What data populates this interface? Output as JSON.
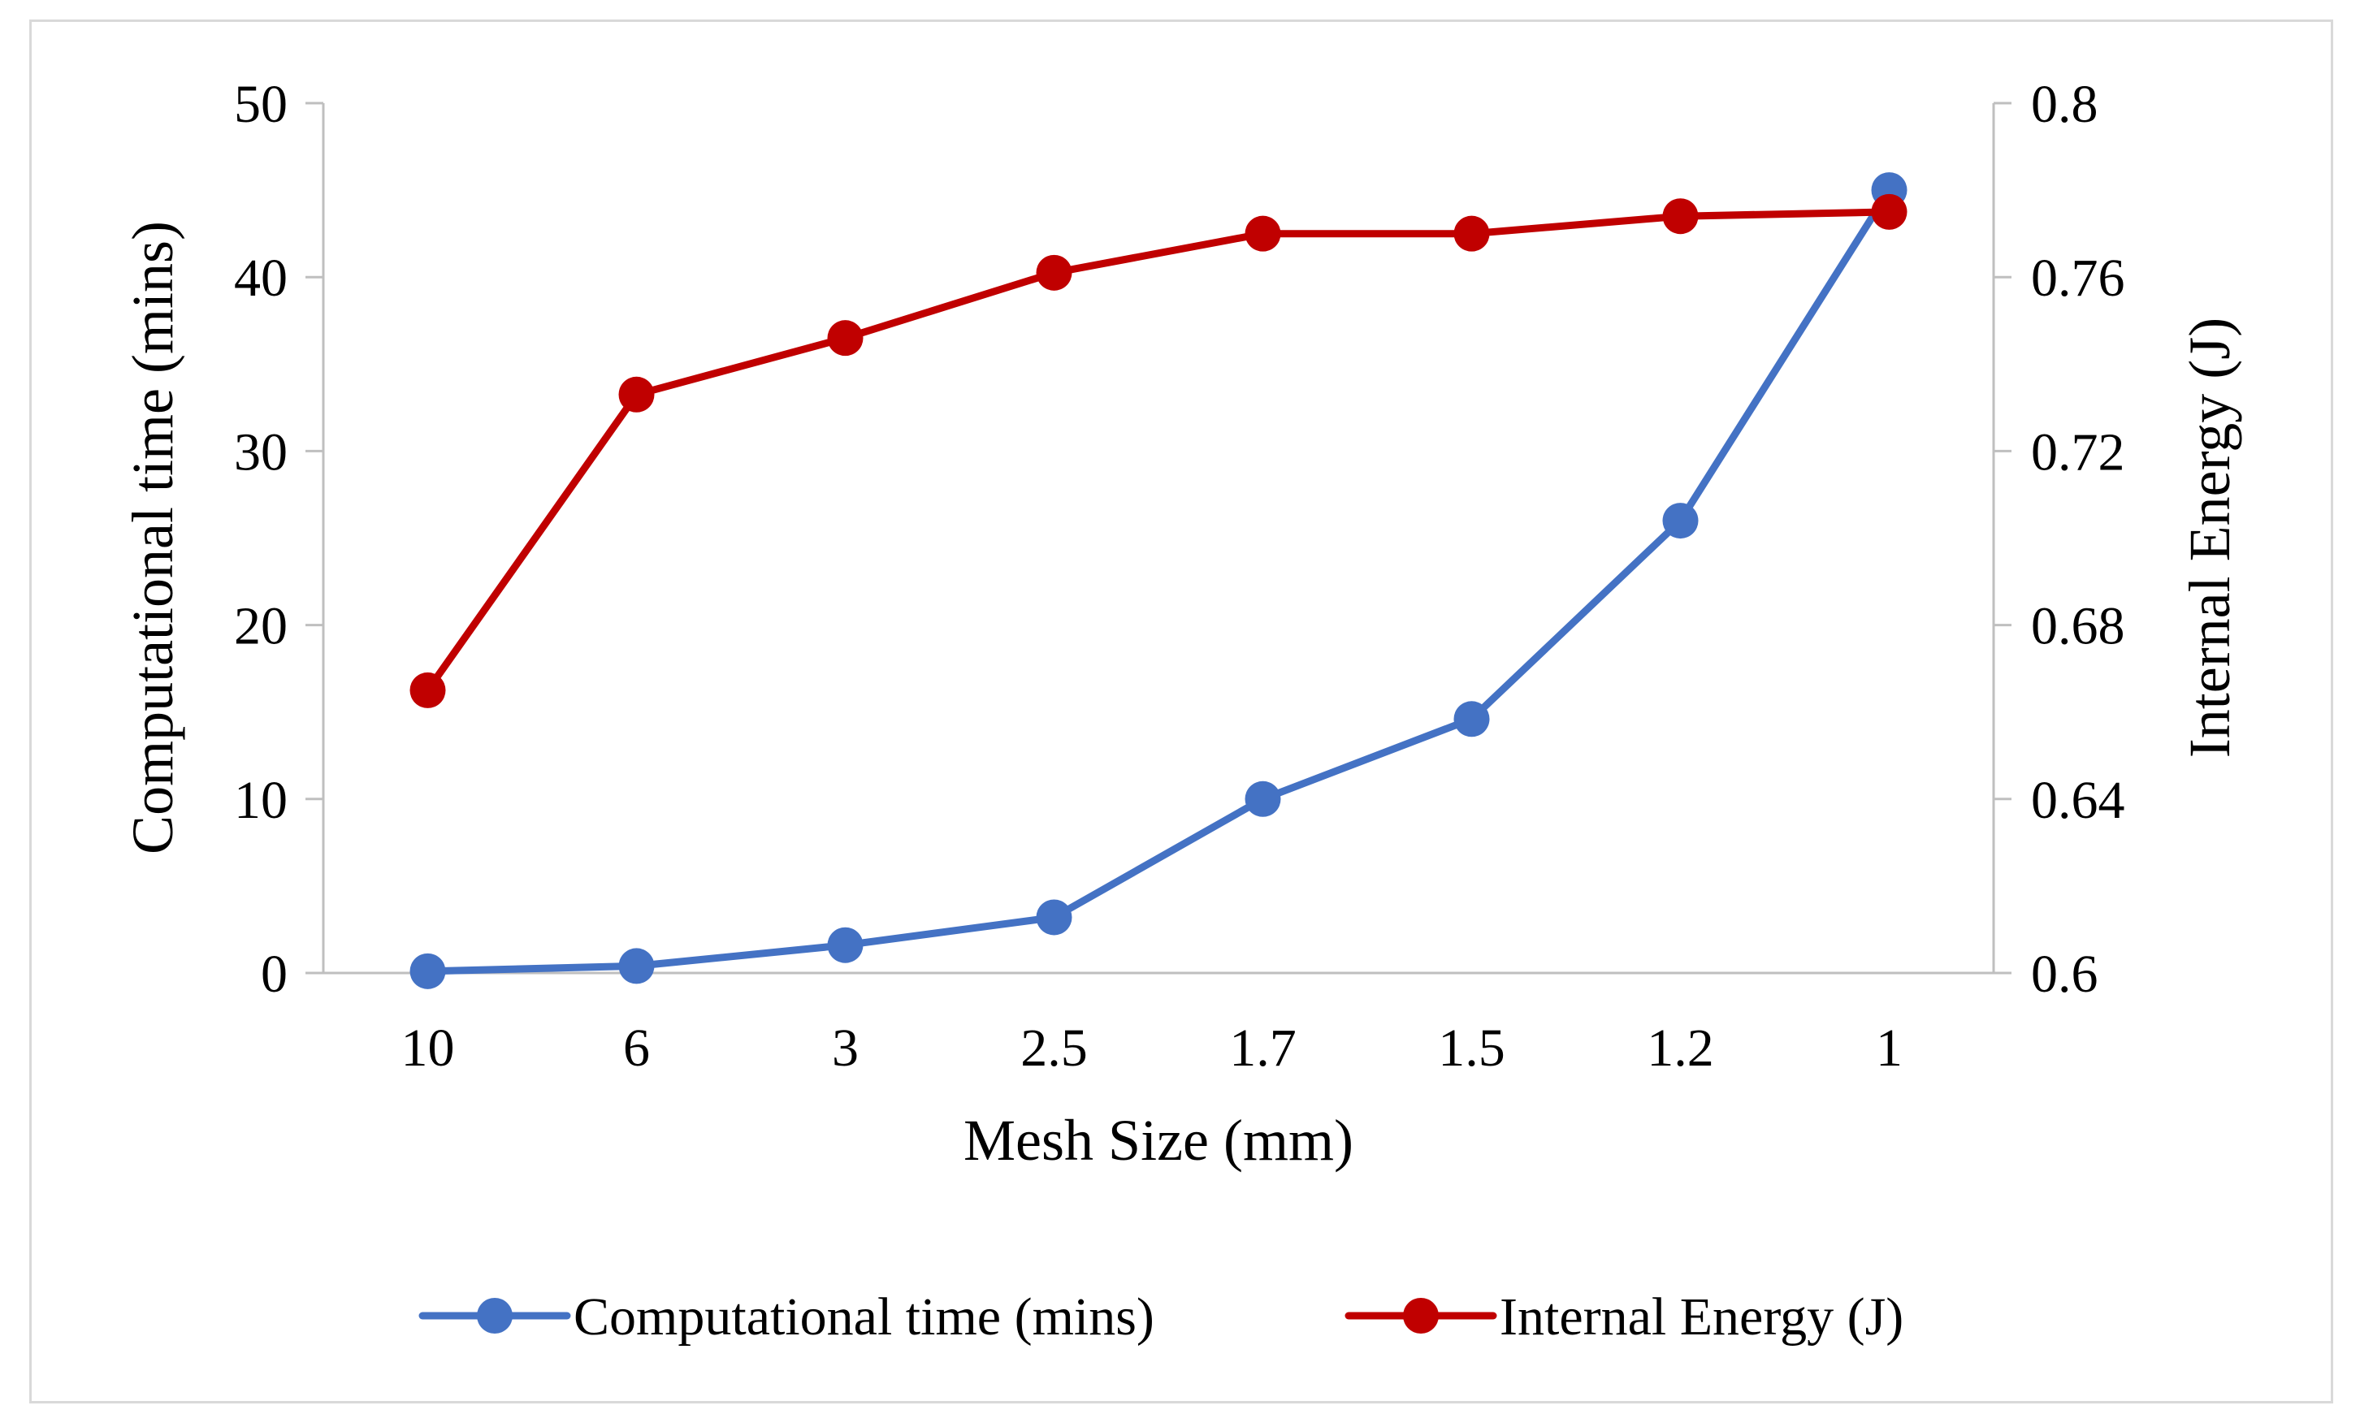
{
  "chart_data": {
    "type": "line",
    "title": "",
    "xlabel": "Mesh Size (mm)",
    "ylabel": "Computational time (mins)",
    "y2label": "Internal Energy (J)",
    "categories": [
      "10",
      "6",
      "3",
      "2.5",
      "1.7",
      "1.5",
      "1.2",
      "1"
    ],
    "ylim": [
      0,
      50
    ],
    "y2lim": [
      0.6,
      0.8
    ],
    "yticks": [
      "0",
      "10",
      "20",
      "30",
      "40",
      "50"
    ],
    "y2ticks": [
      "0.6",
      "0.64",
      "0.68",
      "0.72",
      "0.76",
      "0.8"
    ],
    "grid": false,
    "legend_position": "bottom",
    "series": [
      {
        "name": "Computational time (mins)",
        "axis": "left",
        "color": "#4472C4",
        "values": [
          0.1,
          0.4,
          1.6,
          3.2,
          10.0,
          14.6,
          26.0,
          45.0
        ]
      },
      {
        "name": "Internal Energy (J)",
        "axis": "right",
        "color": "#C00000",
        "values": [
          0.665,
          0.733,
          0.746,
          0.761,
          0.77,
          0.77,
          0.774,
          0.775
        ]
      }
    ]
  }
}
